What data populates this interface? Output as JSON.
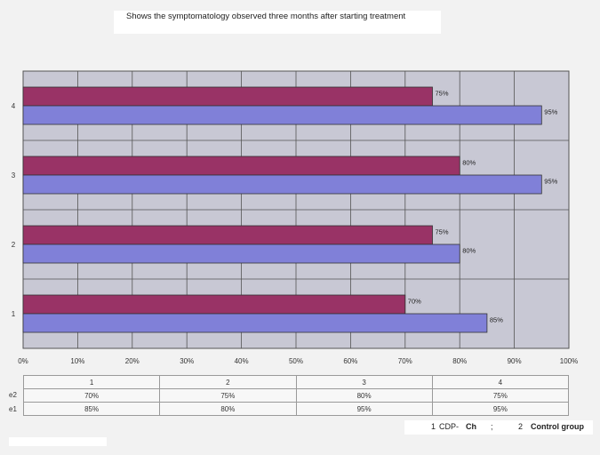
{
  "chart_data": {
    "type": "bar",
    "orientation": "horizontal",
    "title": "Shows the symptomatology observed three months after starting treatment",
    "categories": [
      "1",
      "2",
      "3",
      "4"
    ],
    "xlim": [
      0,
      100
    ],
    "x_ticks": [
      "0%",
      "10%",
      "20%",
      "30%",
      "40%",
      "50%",
      "60%",
      "70%",
      "80%",
      "90%",
      "100%"
    ],
    "grid": true,
    "series": [
      {
        "name": "e2",
        "color": "#993366",
        "values": [
          70,
          75,
          80,
          75
        ],
        "labels": [
          "70%",
          "75%",
          "80%",
          "75%"
        ]
      },
      {
        "name": "e1",
        "color": "#8080d8",
        "values": [
          85,
          80,
          95,
          95
        ],
        "labels": [
          "85%",
          "80%",
          "95%",
          "95%"
        ]
      }
    ],
    "table": {
      "header": [
        "1",
        "2",
        "3",
        "4"
      ],
      "rows": [
        {
          "label": "e2",
          "cells": [
            "70%",
            "75%",
            "80%",
            "75%"
          ]
        },
        {
          "label": "e1",
          "cells": [
            "85%",
            "80%",
            "95%",
            "95%"
          ]
        }
      ]
    },
    "legend": {
      "item1_num": "1",
      "item1_text": "CDP-",
      "item1_bold": "Ch",
      "separator": ";",
      "item2_num": "2",
      "item2_text": "Control group"
    }
  }
}
